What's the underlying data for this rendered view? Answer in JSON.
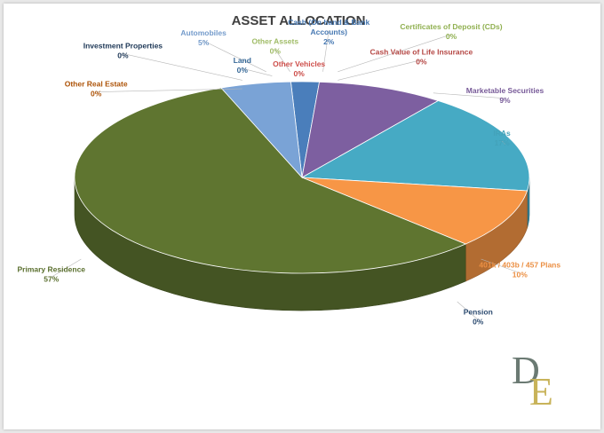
{
  "chart_data": {
    "type": "pie",
    "title": "ASSET ALLOCATION",
    "slices": [
      {
        "label": "Cash (On hand & Bank Accounts)",
        "label_lines": [
          "Cash (On hand & Bank",
          "Accounts)"
        ],
        "value": 2,
        "value_text": "2%",
        "color": "#4a7ebb"
      },
      {
        "label": "Certificates of Deposit (CDs)",
        "label_lines": [
          "Certificates of Deposit (CDs)"
        ],
        "value": 0,
        "value_text": "0%",
        "color": "#98b954"
      },
      {
        "label": "Cash Value of Life Insurance",
        "label_lines": [
          "Cash Value of Life Insurance"
        ],
        "value": 0,
        "value_text": "0%",
        "color": "#be4b48"
      },
      {
        "label": "Marketable Securities",
        "label_lines": [
          "Marketable Securities"
        ],
        "value": 9,
        "value_text": "9%",
        "color": "#7d5fa0"
      },
      {
        "label": "IRAs",
        "label_lines": [
          "IRAs"
        ],
        "value": 17,
        "value_text": "17%",
        "color": "#46aac4"
      },
      {
        "label": "401k / 403b / 457 Plans",
        "label_lines": [
          "401k / 403b / 457 Plans"
        ],
        "value": 10,
        "value_text": "10%",
        "color": "#f79646"
      },
      {
        "label": "Pension",
        "label_lines": [
          "Pension"
        ],
        "value": 0,
        "value_text": "0%",
        "color": "#2c4d75"
      },
      {
        "label": "Primary Residence",
        "label_lines": [
          "Primary Residence"
        ],
        "value": 57,
        "value_text": "57%",
        "color": "#5f7530"
      },
      {
        "label": "Other Real Estate",
        "label_lines": [
          "Other Real Estate"
        ],
        "value": 0,
        "value_text": "0%",
        "color": "#b65708"
      },
      {
        "label": "Investment Properties",
        "label_lines": [
          "Investment Properties"
        ],
        "value": 0,
        "value_text": "0%",
        "color": "#1f3a5a"
      },
      {
        "label": "Land",
        "label_lines": [
          "Land"
        ],
        "value": 0,
        "value_text": "0%",
        "color": "#3a6fa0"
      },
      {
        "label": "Automobiles",
        "label_lines": [
          "Automobiles"
        ],
        "value": 5,
        "value_text": "5%",
        "color": "#7aa3d6"
      },
      {
        "label": "Other Assets",
        "label_lines": [
          "Other Assets"
        ],
        "value": 0,
        "value_text": "0%",
        "color": "#a8c66c"
      },
      {
        "label": "Other Vehicles",
        "label_lines": [
          "Other Vehicles"
        ],
        "value": 0,
        "value_text": "0%",
        "color": "#d9534f"
      }
    ]
  },
  "logo": {
    "text": "DE",
    "color_d": "#6b7a73",
    "color_e": "#c8b35a"
  }
}
